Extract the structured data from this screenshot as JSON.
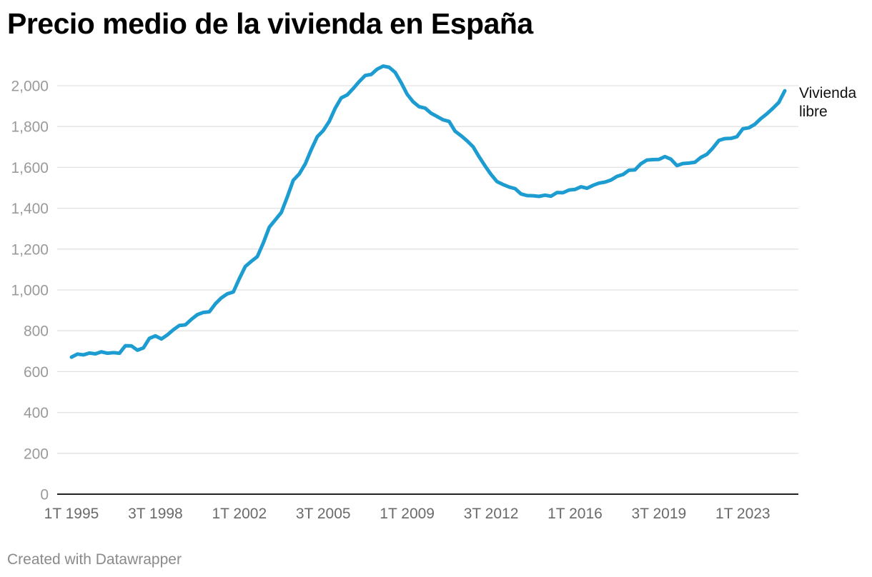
{
  "title": "Precio medio de la vivienda en España",
  "credit": "Created with Datawrapper",
  "colors": {
    "line": "#1d9cd1",
    "grid": "#e2e2e2",
    "baseline": "#222222",
    "ytick": "#9a9a9a",
    "xtick": "#6a6a6a"
  },
  "chart_data": {
    "type": "line",
    "title": "Precio medio de la vivienda en España",
    "xlabel": "",
    "ylabel": "",
    "ylim": [
      0,
      2000
    ],
    "yticks": [
      0,
      200,
      400,
      600,
      800,
      1000,
      1200,
      1400,
      1600,
      1800,
      2000
    ],
    "ytick_labels": [
      "0",
      "200",
      "400",
      "600",
      "800",
      "1,000",
      "1,200",
      "1,400",
      "1,600",
      "1,800",
      "2,000"
    ],
    "xlim": [
      1995.0,
      2024.75
    ],
    "xticks": [
      1995.0,
      1998.5,
      2002.0,
      2005.5,
      2009.0,
      2012.5,
      2016.0,
      2019.5,
      2023.0
    ],
    "xtick_labels": [
      "1T 1995",
      "3T 1998",
      "1T 2002",
      "3T 2005",
      "1T 2009",
      "3T 2012",
      "1T 2016",
      "3T 2019",
      "1T 2023"
    ],
    "grid": true,
    "series": [
      {
        "name": "Vivienda libre",
        "label_lines": [
          "Vivienda",
          "libre"
        ],
        "start": 1995.0,
        "step": 0.25,
        "values": [
          671,
          686,
          682,
          691,
          687,
          697,
          690,
          693,
          690,
          727,
          726,
          705,
          716,
          763,
          775,
          760,
          780,
          805,
          826,
          829,
          856,
          879,
          890,
          893,
          932,
          961,
          981,
          990,
          1055,
          1115,
          1140,
          1163,
          1230,
          1307,
          1343,
          1379,
          1455,
          1537,
          1568,
          1617,
          1687,
          1750,
          1780,
          1825,
          1890,
          1940,
          1955,
          1986,
          2020,
          2050,
          2055,
          2081,
          2096,
          2090,
          2065,
          2015,
          1958,
          1921,
          1897,
          1890,
          1865,
          1849,
          1833,
          1825,
          1777,
          1755,
          1730,
          1701,
          1652,
          1607,
          1565,
          1530,
          1516,
          1504,
          1496,
          1470,
          1462,
          1461,
          1458,
          1464,
          1459,
          1477,
          1476,
          1489,
          1492,
          1505,
          1498,
          1512,
          1523,
          1528,
          1538,
          1556,
          1565,
          1586,
          1588,
          1618,
          1636,
          1638,
          1639,
          1653,
          1640,
          1609,
          1619,
          1621,
          1625,
          1649,
          1664,
          1695,
          1732,
          1741,
          1742,
          1750,
          1789,
          1794,
          1811,
          1839,
          1862,
          1889,
          1918,
          1975
        ]
      }
    ]
  }
}
